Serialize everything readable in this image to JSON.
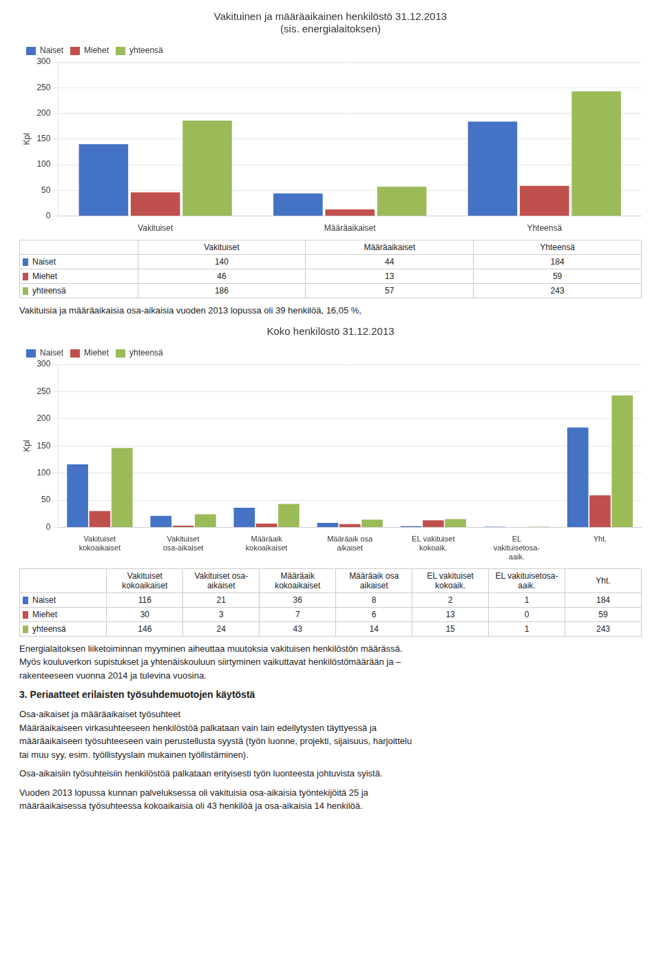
{
  "chart_data": [
    {
      "type": "bar",
      "title": "Vakituinen ja määräaikainen henkilöstö 31.12.2013\n(sis. energialaitoksen)",
      "categories": [
        "Vakituiset",
        "Määräaikaiset",
        "Yhteensä"
      ],
      "series": [
        {
          "name": "Naiset",
          "color": "#4472C4",
          "values": [
            140,
            44,
            184
          ]
        },
        {
          "name": "Miehet",
          "color": "#C0504D",
          "values": [
            46,
            13,
            59
          ]
        },
        {
          "name": "yhteensä",
          "color": "#9BBB59",
          "values": [
            186,
            57,
            243
          ]
        }
      ],
      "ylabel": "Kpl",
      "ylim": [
        0,
        300
      ],
      "yticks": [
        0,
        50,
        100,
        150,
        200,
        250,
        300
      ],
      "grid": true,
      "legend": "upper left",
      "annotations": [
        "Vakituisia ja määräaikaisia osa-aikaisia vuoden 2013 lopussa oli 39 henkilöä, 16,05 %,"
      ]
    },
    {
      "type": "bar",
      "title": "Koko henkilöstö 31.12.2013",
      "categories": [
        "Vakituiset\nkokoaikaiset",
        "Vakituiset\nosa-aikaiset",
        "Määräaik\nkokoaikaiset",
        "Määräaik osa\naikaiset",
        "EL vakituiset\nkokoaik.",
        "EL\nvakituisetosa-\naaik.",
        "Yht."
      ],
      "series": [
        {
          "name": "Naiset",
          "color": "#4472C4",
          "values": [
            116,
            21,
            36,
            8,
            2,
            1,
            184
          ]
        },
        {
          "name": "Miehet",
          "color": "#C0504D",
          "values": [
            30,
            3,
            7,
            6,
            13,
            0,
            59
          ]
        },
        {
          "name": "yhteensä",
          "color": "#9BBB59",
          "values": [
            146,
            24,
            43,
            14,
            15,
            1,
            243
          ]
        }
      ],
      "ylabel": "Kpl",
      "ylim": [
        0,
        300
      ],
      "yticks": [
        0,
        50,
        100,
        150,
        200,
        250,
        300
      ],
      "grid": true,
      "legend": "upper left",
      "annotations": [
        "Energialaitoksen liiketoiminnan myyminen aiheuttaa muutoksia vakituisen henkilöstön määrässä.\nMyös kouluverkon supistukset ja yhtenäiskouluun siirtyminen vaikuttavat henkilöstömäärään ja –\nrakenteeseen vuonna 2014 ja tulevina vuosina.",
        "3. Periaatteet erilaisten työsuhdemuotojen käytöstä",
        "Osa-aikaiset ja määräaikaiset työsuhteet\nMääräaikaiseen virkasuhteeseen henkilöstöä palkataan vain lain edellytysten täyttyessä ja\nmääräaikaiseen työsuhteeseen vain perustellusta syystä (työn luonne, projekti, sijaisuus, harjoittelu\ntai muu syy, esim. työllistyyslain mukainen työllistäminen).",
        "Osa-aikaisiin työsuhteisiin henkilöstöä palkataan erityisesti työn luonteesta johtuvista syistä.",
        "Vuoden 2013 lopussa kunnan palveluksessa oli vakituisia osa-aikaisia työntekijöitä 25 ja\nmääräaikaisessa työsuhteessa kokoaikaisia oli 43 henkilöä ja osa-aikaisia 14 henkilöä."
      ]
    }
  ]
}
